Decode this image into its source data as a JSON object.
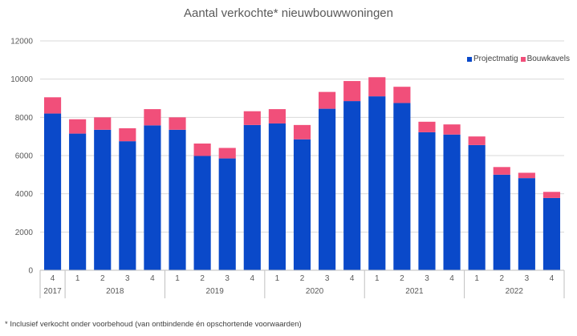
{
  "chart_data": {
    "type": "bar",
    "stacked": true,
    "title": "Aantal verkochte* nieuwbouwwoningen",
    "categories": [
      "4",
      "1",
      "2",
      "3",
      "4",
      "1",
      "2",
      "3",
      "4",
      "1",
      "2",
      "3",
      "4",
      "1",
      "2",
      "3",
      "4",
      "1",
      "2",
      "3",
      "4"
    ],
    "years": [
      {
        "label": "2017",
        "count": 1
      },
      {
        "label": "2018",
        "count": 4
      },
      {
        "label": "2019",
        "count": 4
      },
      {
        "label": "2020",
        "count": 4
      },
      {
        "label": "2021",
        "count": 4
      },
      {
        "label": "2022",
        "count": 4
      }
    ],
    "series": [
      {
        "name": "Projectmatig",
        "color": "#0a49c9",
        "values": [
          8200,
          7150,
          7350,
          6750,
          7580,
          7350,
          5980,
          5850,
          7600,
          7680,
          6850,
          8450,
          8850,
          9100,
          8750,
          7220,
          7100,
          6550,
          5000,
          4820,
          3780
        ]
      },
      {
        "name": "Bouwkavels",
        "color": "#f14f7a",
        "values": [
          850,
          750,
          650,
          680,
          850,
          650,
          650,
          550,
          720,
          750,
          750,
          880,
          1050,
          1000,
          850,
          550,
          530,
          450,
          400,
          280,
          320
        ]
      }
    ],
    "yticks": [
      "0",
      "2000",
      "4000",
      "6000",
      "8000",
      "10000",
      "12000"
    ],
    "ylim": [
      0,
      12000
    ],
    "grid": true,
    "legend_position": "top-right"
  },
  "footnote": "* Inclusief verkocht onder voorbehoud (van ontbindende én opschortende voorwaarden)"
}
